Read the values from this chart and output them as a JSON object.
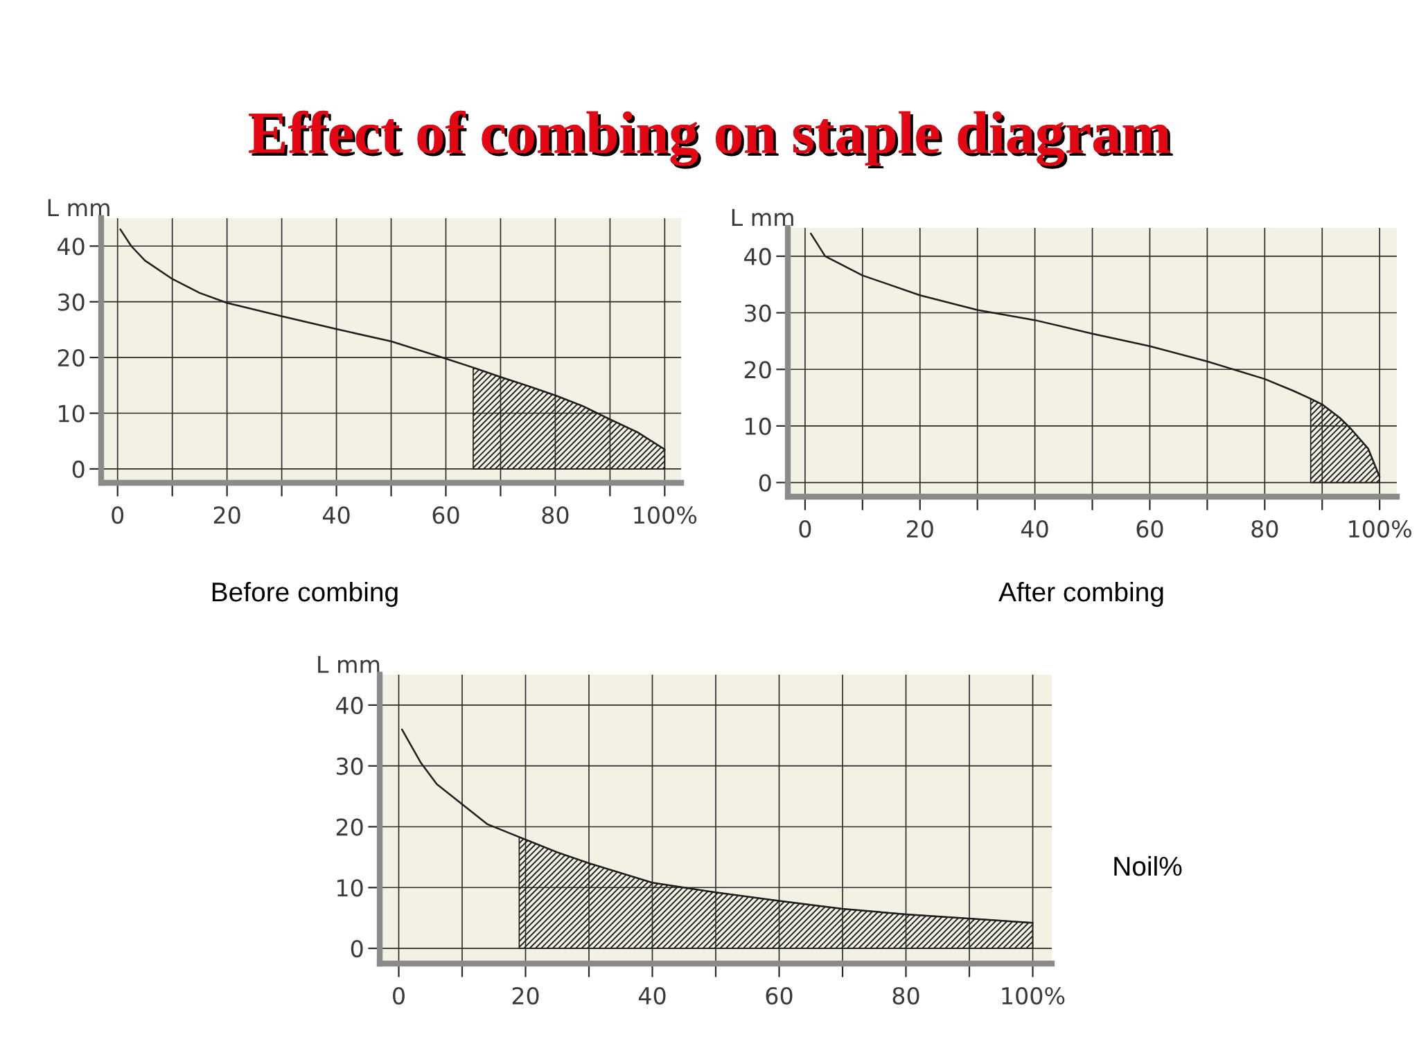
{
  "chart_data": [
    {
      "type": "line",
      "title": "Effect of combing on staple diagram",
      "ylabel": "L mm",
      "annotations": [
        "Before combing"
      ],
      "series": [
        {
          "x": [
            0.5,
            2.5,
            5,
            10,
            15,
            20,
            30,
            40,
            50,
            60,
            65,
            70,
            75,
            80,
            85,
            90,
            95,
            100
          ],
          "values": [
            43,
            40,
            37.4,
            34.1,
            31.6,
            29.8,
            27.4,
            25.1,
            22.9,
            19.8,
            18.2,
            16.5,
            14.9,
            13.2,
            11.3,
            8.9,
            6.6,
            3.5
          ],
          "color": "#1e1e1e"
        },
        {
          "type": "area",
          "x": [
            65,
            70,
            75,
            80,
            85,
            90,
            95,
            100
          ],
          "values": [
            18.2,
            16.5,
            14.9,
            13.2,
            11.3,
            8.9,
            6.6,
            3.5
          ],
          "color": "#1e1e1e"
        }
      ],
      "xlim": [
        -3,
        103
      ],
      "ylim": [
        -2.5,
        45
      ],
      "xticks": [
        0,
        {
          "value": 10,
          "label": null
        },
        20,
        {
          "value": 30,
          "label": null
        },
        40,
        {
          "value": 50,
          "label": null
        },
        60,
        {
          "value": 70,
          "label": null
        },
        80,
        {
          "value": 90,
          "label": null
        },
        {
          "value": 100,
          "label": "100%"
        }
      ],
      "yticks": [
        0,
        10,
        20,
        30,
        40
      ],
      "grid": true
    },
    {
      "type": "line",
      "ylabel": "L mm",
      "annotations": [
        "After combing"
      ],
      "series": [
        {
          "x": [
            1,
            3.5,
            10,
            20,
            30,
            40,
            50,
            60,
            70,
            80,
            85,
            88,
            90,
            93,
            95,
            98,
            100
          ],
          "values": [
            44,
            40,
            36.6,
            33.1,
            30.5,
            28.7,
            26.3,
            24.1,
            21.4,
            18.3,
            16.2,
            14.8,
            13.8,
            11.5,
            9.5,
            6,
            1
          ],
          "color": "#1e1e1e"
        },
        {
          "type": "area",
          "x": [
            88,
            90,
            93,
            95,
            98,
            100
          ],
          "values": [
            14.8,
            13.8,
            11.5,
            9.5,
            6,
            1
          ],
          "color": "#1e1e1e"
        }
      ],
      "xlim": [
        -3,
        103
      ],
      "ylim": [
        -2.5,
        45
      ],
      "xticks": [
        0,
        {
          "value": 10,
          "label": null
        },
        20,
        {
          "value": 30,
          "label": null
        },
        40,
        {
          "value": 50,
          "label": null
        },
        60,
        {
          "value": 70,
          "label": null
        },
        80,
        {
          "value": 90,
          "label": null
        },
        {
          "value": 100,
          "label": "100%"
        }
      ],
      "yticks": [
        0,
        10,
        20,
        30,
        40
      ],
      "grid": true
    },
    {
      "type": "line",
      "ylabel": "L mm",
      "annotations": [
        "Noil%"
      ],
      "series": [
        {
          "x": [
            0.5,
            3.5,
            6,
            10,
            14,
            19,
            25,
            30,
            40,
            50,
            60,
            70,
            80,
            90,
            100
          ],
          "values": [
            36,
            30.5,
            27,
            23.7,
            20.4,
            18.3,
            15.8,
            14,
            10.8,
            9.2,
            7.8,
            6.5,
            5.6,
            4.9,
            4.2
          ],
          "color": "#1e1e1e"
        },
        {
          "type": "area",
          "x": [
            19,
            25,
            30,
            40,
            50,
            60,
            70,
            80,
            90,
            100
          ],
          "values": [
            18.3,
            15.8,
            14,
            10.8,
            9.2,
            7.8,
            6.5,
            5.6,
            4.9,
            4.2
          ],
          "color": "#1e1e1e"
        }
      ],
      "xlim": [
        -3,
        103
      ],
      "ylim": [
        -2.5,
        45
      ],
      "xticks": [
        0,
        {
          "value": 10,
          "label": null
        },
        20,
        {
          "value": 30,
          "label": null
        },
        40,
        {
          "value": 50,
          "label": null
        },
        60,
        {
          "value": 70,
          "label": null
        },
        80,
        {
          "value": 90,
          "label": null
        },
        {
          "value": 100,
          "label": "100%"
        }
      ],
      "yticks": [
        0,
        10,
        20,
        30,
        40
      ],
      "grid": true
    }
  ]
}
